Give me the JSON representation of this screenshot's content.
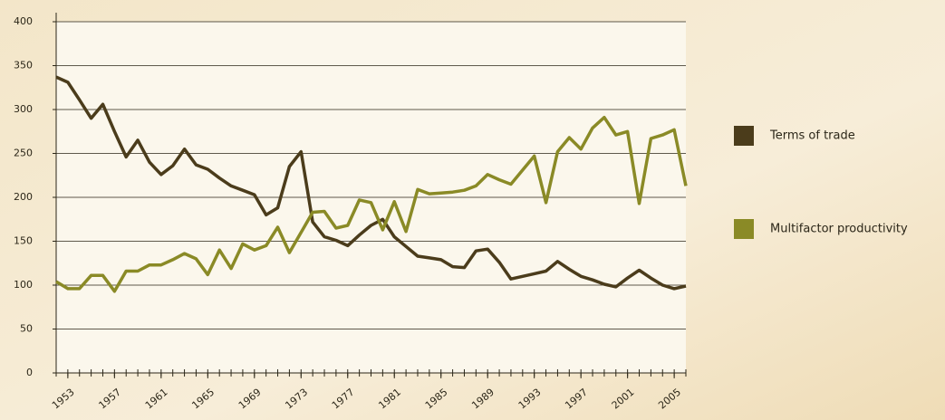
{
  "chart_data": {
    "type": "line",
    "x": [
      1952,
      1953,
      1954,
      1955,
      1956,
      1957,
      1958,
      1959,
      1960,
      1961,
      1962,
      1963,
      1964,
      1965,
      1966,
      1967,
      1968,
      1969,
      1970,
      1971,
      1972,
      1973,
      1974,
      1975,
      1976,
      1977,
      1978,
      1979,
      1980,
      1981,
      1982,
      1983,
      1984,
      1985,
      1986,
      1987,
      1988,
      1989,
      1990,
      1991,
      1992,
      1993,
      1994,
      1995,
      1996,
      1997,
      1998,
      1999,
      2000,
      2001,
      2002,
      2003,
      2004,
      2005,
      2006
    ],
    "series": [
      {
        "name": "Terms of trade",
        "color": "#4b3c1b",
        "values": [
          337,
          331,
          311,
          290,
          306,
          275,
          246,
          265,
          240,
          226,
          236,
          255,
          237,
          232,
          222,
          213,
          208,
          203,
          180,
          188,
          235,
          252,
          172,
          155,
          151,
          145,
          157,
          168,
          175,
          155,
          144,
          133,
          131,
          129,
          121,
          120,
          139,
          141,
          126,
          107,
          110,
          113,
          116,
          127,
          118,
          110,
          106,
          101,
          98,
          108,
          117,
          108,
          100,
          96,
          99
        ]
      },
      {
        "name": "Multifactor productivity",
        "color": "#8a8a26",
        "values": [
          104,
          96,
          96,
          111,
          111,
          93,
          116,
          116,
          123,
          123,
          129,
          136,
          130,
          112,
          140,
          119,
          147,
          140,
          145,
          166,
          137,
          160,
          183,
          184,
          165,
          168,
          197,
          194,
          163,
          195,
          161,
          209,
          204,
          205,
          206,
          208,
          213,
          226,
          220,
          215,
          231,
          247,
          194,
          252,
          268,
          255,
          279,
          291,
          271,
          275,
          193,
          267,
          271,
          277,
          213
        ]
      }
    ],
    "xlim": [
      1952,
      2006
    ],
    "xticks": [
      1953,
      1957,
      1961,
      1965,
      1969,
      1973,
      1977,
      1981,
      1985,
      1989,
      1993,
      1997,
      2001,
      2005
    ],
    "ylim": [
      0,
      400
    ],
    "yticks": [
      0,
      50,
      100,
      150,
      200,
      250,
      300,
      350,
      400
    ],
    "grid": true,
    "legend": "right"
  }
}
